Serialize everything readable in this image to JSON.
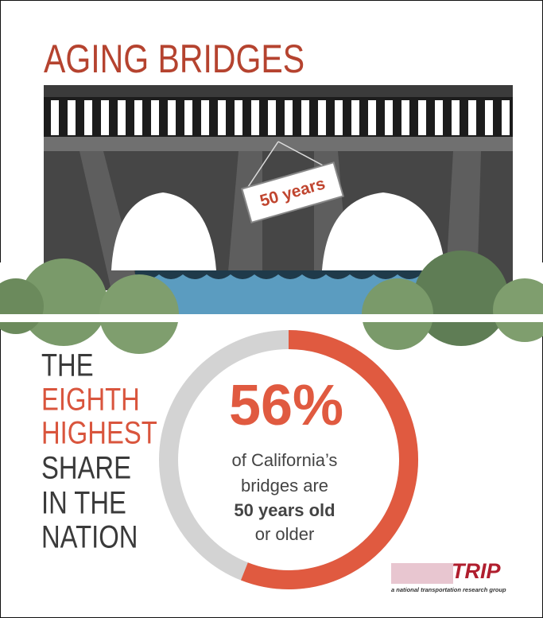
{
  "title": "AGING BRIDGES",
  "sign": "50 years",
  "headline": [
    "THE",
    "EIGHTH",
    "HIGHEST",
    "SHARE",
    "IN THE",
    "NATION"
  ],
  "donut": {
    "value": 56,
    "label": "56%"
  },
  "caption": [
    "of California’s",
    "bridges are",
    "50 years old",
    "or older"
  ],
  "logo": {
    "name": "TRIP",
    "tagline": "a national transportation research group"
  }
}
